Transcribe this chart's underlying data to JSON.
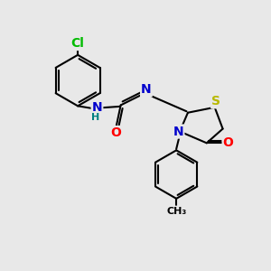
{
  "bg_color": "#e8e8e8",
  "atom_colors": {
    "C": "#000000",
    "N": "#0000cc",
    "O": "#ff0000",
    "S": "#b8b800",
    "Cl": "#00bb00",
    "H": "#008080"
  },
  "bond_color": "#000000",
  "bond_width": 1.5,
  "font_size_atom": 10,
  "font_size_small": 8
}
